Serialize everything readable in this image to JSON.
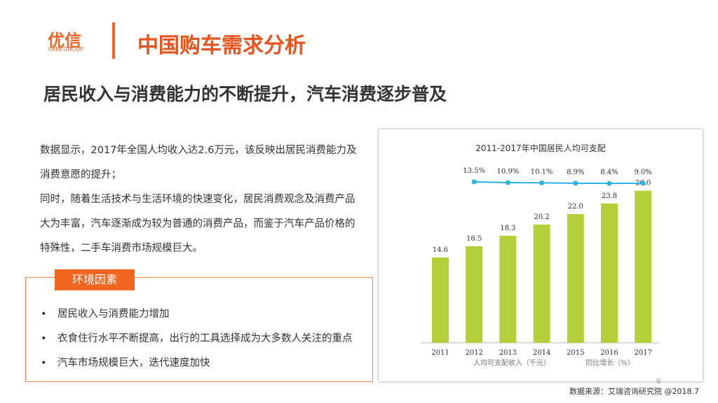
{
  "header": {
    "logo_cn": "优信",
    "logo_en": "UXIN GROUP",
    "title": "中国购车需求分析"
  },
  "subtitle": "居民收入与消费能力的不断提升，汽车消费逐步普及",
  "paragraphs": [
    "数据显示，2017年全国人均收入达2.6万元，该反映出居民消费能力及消费意愿的提升；",
    "同时，随着生活技术与生活环境的快速变化，居民消费观念及消费产品大为丰富，汽车逐渐成为较为普通的消费产品，而鉴于汽车产品价格的特殊性，二手车消费市场规模巨大。"
  ],
  "box": {
    "title": "环境因素",
    "items": [
      "居民收入与消费能力增加",
      "衣食住行水平不断提高，出行的工具选择成为大多数人关注的重点",
      "汽车市场规模巨大，迭代速度加快"
    ]
  },
  "chart_data": {
    "type": "bar",
    "title": "2011-2017年中国居民人均可支配",
    "categories": [
      "2011",
      "2012",
      "2013",
      "2014",
      "2015",
      "2016",
      "2017"
    ],
    "ylim": [
      0,
      30
    ],
    "y2lim": [
      -500,
      60
    ],
    "series": [
      {
        "name": "人均可支配收入（千元）",
        "color": "#b5cf3a",
        "values": [
          14.6,
          16.5,
          18.3,
          20.2,
          22.0,
          23.8,
          26.0
        ],
        "value_labels": [
          "14.6",
          "16.5",
          "18.3",
          "20.2",
          "22.0",
          "23.8",
          "26.0"
        ]
      },
      {
        "name": "同比增长（%）",
        "color": "#2bb3e3",
        "axis": "y2",
        "type": "line",
        "values": [
          null,
          13.5,
          10.9,
          10.1,
          8.9,
          8.4,
          9.0
        ],
        "value_labels": [
          null,
          "13.5%",
          "10.9%",
          "10.1%",
          "8.9%",
          "8.4%",
          "9.0%"
        ]
      }
    ]
  },
  "source": "数据来源：艾瑞咨询研究院 @2018.7",
  "page_number": "6"
}
